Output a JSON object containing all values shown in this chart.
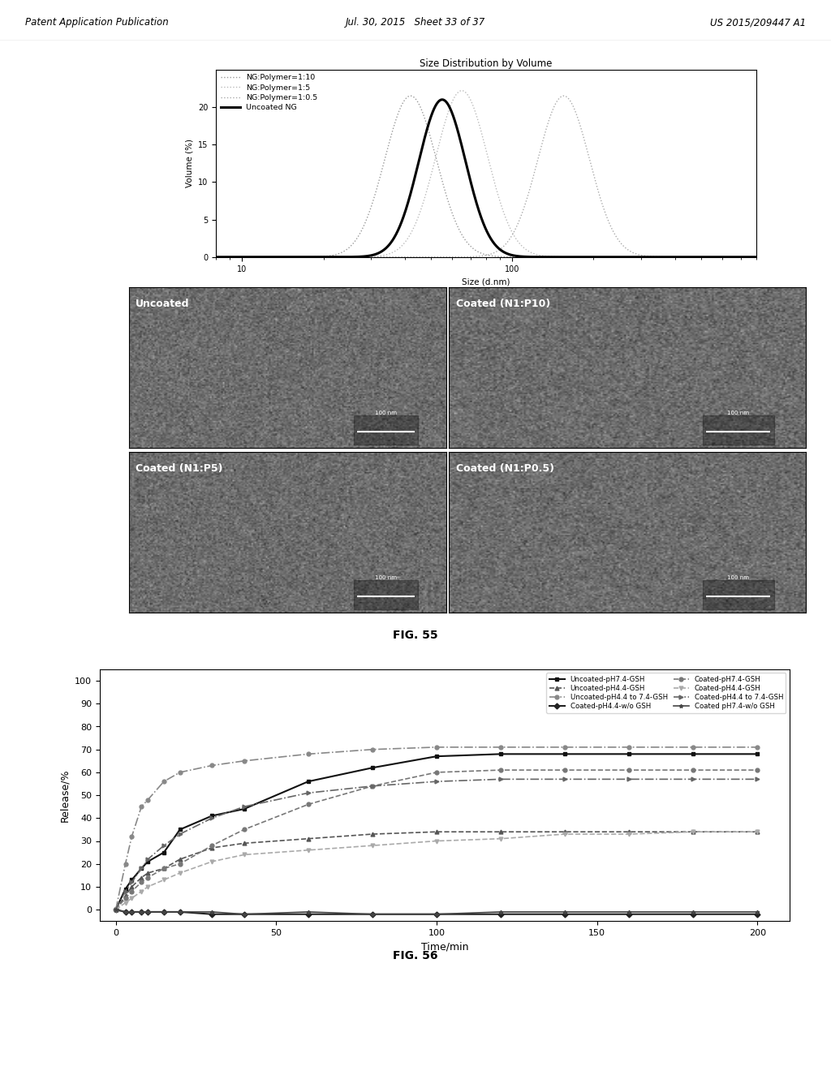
{
  "header_left": "Patent Application Publication",
  "header_center": "Jul. 30, 2015   Sheet 33 of 37",
  "header_right": "US 2015/209447 A1",
  "fig55_label": "FIG. 55",
  "fig56_label": "FIG. 56",
  "plot1_title": "Size Distribution by Volume",
  "plot1_xlabel": "Size (d.nm)",
  "plot1_ylabel": "Volume (%)",
  "plot1_ylim": [
    0,
    25
  ],
  "plot1_series": [
    {
      "label": "NG:Polymer=1:10",
      "peak": 42,
      "sigma": 0.22,
      "peak_val": 21.5,
      "color": "#999999",
      "lw": 1.0
    },
    {
      "label": "NG:Polymer=1:5",
      "peak": 65,
      "sigma": 0.22,
      "peak_val": 22.2,
      "color": "#bbbbbb",
      "lw": 1.0
    },
    {
      "label": "NG:Polymer=1:0.5",
      "peak": 155,
      "sigma": 0.22,
      "peak_val": 21.5,
      "color": "#aaaaaa",
      "lw": 1.0
    },
    {
      "label": "Uncoated NG",
      "peak": 55,
      "sigma": 0.2,
      "peak_val": 21.0,
      "color": "#000000",
      "lw": 2.2
    }
  ],
  "plot2_xlabel": "Time/min",
  "plot2_ylabel": "Release/%",
  "plot2_ylim": [
    -5,
    105
  ],
  "plot2_xlim": [
    -5,
    210
  ],
  "plot2_yticks": [
    0,
    10,
    20,
    30,
    40,
    50,
    60,
    70,
    80,
    90,
    100
  ],
  "plot2_xticks": [
    0,
    50,
    100,
    150,
    200
  ],
  "plot2_series": [
    {
      "label": "Uncoated-pH7.4-GSH",
      "color": "#111111",
      "marker": "s",
      "ls": "-",
      "lw": 1.5,
      "time": [
        0,
        3,
        5,
        8,
        10,
        15,
        20,
        30,
        40,
        60,
        80,
        100,
        120,
        140,
        160,
        180,
        200
      ],
      "release": [
        0,
        9,
        13,
        18,
        21,
        25,
        35,
        41,
        44,
        56,
        62,
        67,
        68,
        68,
        68,
        68,
        68
      ]
    },
    {
      "label": "Uncoated-pH4.4-GSH",
      "color": "#555555",
      "marker": "^",
      "ls": "--",
      "lw": 1.2,
      "time": [
        0,
        3,
        5,
        8,
        10,
        15,
        20,
        30,
        40,
        60,
        80,
        100,
        120,
        140,
        160,
        180,
        200
      ],
      "release": [
        0,
        6,
        10,
        14,
        16,
        18,
        22,
        27,
        29,
        31,
        33,
        34,
        34,
        34,
        34,
        34,
        34
      ]
    },
    {
      "label": "Uncoated-pH4.4 to 7.4-GSH",
      "color": "#888888",
      "marker": "o",
      "ls": "-.",
      "lw": 1.2,
      "time": [
        0,
        3,
        5,
        8,
        10,
        15,
        20,
        30,
        40,
        60,
        80,
        100,
        120,
        140,
        160,
        180,
        200
      ],
      "release": [
        0,
        20,
        32,
        45,
        48,
        56,
        60,
        63,
        65,
        68,
        70,
        71,
        71,
        71,
        71,
        71,
        71
      ]
    },
    {
      "label": "Coated-pH4.4-w/o GSH",
      "color": "#222222",
      "marker": "D",
      "ls": "-",
      "lw": 1.5,
      "time": [
        0,
        3,
        5,
        8,
        10,
        15,
        20,
        30,
        40,
        60,
        80,
        100,
        120,
        140,
        160,
        180,
        200
      ],
      "release": [
        0,
        -1,
        -1,
        -1,
        -1,
        -1,
        -1,
        -2,
        -2,
        -2,
        -2,
        -2,
        -2,
        -2,
        -2,
        -2,
        -2
      ]
    },
    {
      "label": "Coated-pH7.4-GSH",
      "color": "#777777",
      "marker": "o",
      "ls": "--",
      "lw": 1.2,
      "time": [
        0,
        3,
        5,
        8,
        10,
        15,
        20,
        30,
        40,
        60,
        80,
        100,
        120,
        140,
        160,
        180,
        200
      ],
      "release": [
        0,
        5,
        8,
        12,
        14,
        18,
        20,
        28,
        35,
        46,
        54,
        60,
        61,
        61,
        61,
        61,
        61
      ]
    },
    {
      "label": "Coated-pH4.4-GSH",
      "color": "#aaaaaa",
      "marker": "v",
      "ls": "--",
      "lw": 1.2,
      "time": [
        0,
        3,
        5,
        8,
        10,
        15,
        20,
        30,
        40,
        60,
        80,
        100,
        120,
        140,
        160,
        180,
        200
      ],
      "release": [
        0,
        3,
        5,
        8,
        10,
        13,
        16,
        21,
        24,
        26,
        28,
        30,
        31,
        33,
        33,
        34,
        34
      ]
    },
    {
      "label": "Coated-pH4.4 to 7.4-GSH",
      "color": "#666666",
      "marker": ">",
      "ls": "-.",
      "lw": 1.2,
      "time": [
        0,
        3,
        5,
        8,
        10,
        15,
        20,
        30,
        40,
        60,
        80,
        100,
        120,
        140,
        160,
        180,
        200
      ],
      "release": [
        0,
        8,
        12,
        18,
        22,
        28,
        33,
        40,
        45,
        51,
        54,
        56,
        57,
        57,
        57,
        57,
        57
      ]
    },
    {
      "label": "Coated pH7.4-w/o GSH",
      "color": "#444444",
      "marker": "*",
      "ls": "-",
      "lw": 1.2,
      "time": [
        0,
        3,
        5,
        8,
        10,
        15,
        20,
        30,
        40,
        60,
        80,
        100,
        120,
        140,
        160,
        180,
        200
      ],
      "release": [
        0,
        -1,
        -1,
        -1,
        -1,
        -1,
        -1,
        -1,
        -2,
        -1,
        -2,
        -2,
        -1,
        -1,
        -1,
        -1,
        -1
      ]
    }
  ],
  "panel_labels": [
    "Uncoated",
    "Coated (N1:P10)",
    "Coated (N1:P5)",
    "Coated (N1:P0.5)"
  ]
}
